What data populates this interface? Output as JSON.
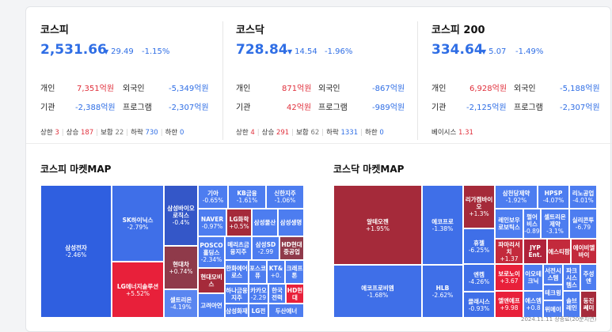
{
  "indices": [
    {
      "name": "코스피",
      "value": "2,531.66",
      "change": "29.49",
      "pct": "-1.15%",
      "rows": [
        {
          "l1": "개인",
          "v1": "7,351억원",
          "c1": "red",
          "l2": "외국인",
          "v2": "-5,349억원",
          "c2": "blue"
        },
        {
          "l1": "기관",
          "v1": "-2,388억원",
          "c1": "blue",
          "l2": "프로그램",
          "v2": "-2,307억원",
          "c2": "blue"
        }
      ],
      "stats": {
        "upper_label": "상한",
        "upper": "3",
        "up_label": "상승",
        "up": "187",
        "flat_label": "보합",
        "flat": "22",
        "down_label": "하락",
        "down": "730",
        "lower_label": "하한",
        "lower": "0"
      }
    },
    {
      "name": "코스닥",
      "value": "728.84",
      "change": "14.54",
      "pct": "-1.96%",
      "rows": [
        {
          "l1": "개인",
          "v1": "871억원",
          "c1": "red",
          "l2": "외국인",
          "v2": "-867억원",
          "c2": "blue"
        },
        {
          "l1": "기관",
          "v1": "42억원",
          "c1": "red",
          "l2": "프로그램",
          "v2": "-989억원",
          "c2": "blue"
        }
      ],
      "stats": {
        "upper_label": "상한",
        "upper": "4",
        "up_label": "상승",
        "up": "291",
        "flat_label": "보합",
        "flat": "62",
        "down_label": "하락",
        "down": "1331",
        "lower_label": "하한",
        "lower": "0"
      }
    },
    {
      "name": "코스피 200",
      "value": "334.64",
      "change": "5.07",
      "pct": "-1.49%",
      "rows": [
        {
          "l1": "개인",
          "v1": "6,928억원",
          "c1": "red",
          "l2": "외국인",
          "v2": "-5,188억원",
          "c2": "blue"
        },
        {
          "l1": "기관",
          "v1": "-2,125억원",
          "c1": "blue",
          "l2": "프로그램",
          "v2": "-2,307억원",
          "c2": "blue"
        }
      ],
      "basis_label": "베이시스",
      "basis": "1.31"
    }
  ],
  "kospi_map": {
    "title": "코스피 마켓MAP",
    "cells": [
      {
        "n": "삼성전자",
        "p": "-2.46%"
      },
      {
        "n": "SK하이닉스",
        "p": "-2.79%"
      },
      {
        "n": "LG에너지솔루션",
        "p": "+5.52%"
      },
      {
        "n": "삼성바이오로직스",
        "p": "-0.4%"
      },
      {
        "n": "현대차",
        "p": "+0.74%"
      },
      {
        "n": "셀트리온",
        "p": "-4.19%"
      },
      {
        "n": "기아",
        "p": "-0.65%"
      },
      {
        "n": "KB금융",
        "p": "-1.61%"
      },
      {
        "n": "신한지주",
        "p": "-1.06%"
      },
      {
        "n": "NAVER",
        "p": "-0.97%"
      },
      {
        "n": "LG화학",
        "p": "+0.5%"
      },
      {
        "n": "삼성물산",
        "p": ""
      },
      {
        "n": "삼성생명",
        "p": ""
      },
      {
        "n": "POSCO홀딩스",
        "p": "-2.34%"
      },
      {
        "n": "메리츠금융지주",
        "p": ""
      },
      {
        "n": "삼성SD",
        "p": "-2.99"
      },
      {
        "n": "HD현대중공업",
        "p": ""
      },
      {
        "n": "현대모비스",
        "p": ""
      },
      {
        "n": "한화에어로스",
        "p": ""
      },
      {
        "n": "포스코퓨",
        "p": ""
      },
      {
        "n": "KT&",
        "p": "+0."
      },
      {
        "n": "크래프톤",
        "p": ""
      },
      {
        "n": "하나금융지주",
        "p": ""
      },
      {
        "n": "카카오",
        "p": "-2.29"
      },
      {
        "n": "한국전력",
        "p": ""
      },
      {
        "n": "HD현대",
        "p": ""
      },
      {
        "n": "고려아연",
        "p": ""
      },
      {
        "n": "삼성화재",
        "p": ""
      },
      {
        "n": "LG전",
        "p": ""
      },
      {
        "n": "두산에너",
        "p": ""
      }
    ]
  },
  "kosdaq_map": {
    "title": "코스닥 마켓MAP",
    "cells": [
      {
        "n": "알테오젠",
        "p": "+1.95%"
      },
      {
        "n": "에코프로비엠",
        "p": "-1.68%"
      },
      {
        "n": "에코프로",
        "p": "-1.38%"
      },
      {
        "n": "HLB",
        "p": "-2.62%"
      },
      {
        "n": "리가켐바이오",
        "p": "+1.3%"
      },
      {
        "n": "휴젤",
        "p": "-6.25%"
      },
      {
        "n": "엔켐",
        "p": "-4.26%"
      },
      {
        "n": "클래시스",
        "p": "-0.93%"
      },
      {
        "n": "삼천당제약",
        "p": "-1.92%"
      },
      {
        "n": "HPSP",
        "p": "-4.07%"
      },
      {
        "n": "리노공업",
        "p": "-4.01%"
      },
      {
        "n": "레인보우로보틱스",
        "p": ""
      },
      {
        "n": "펄어비스",
        "p": "-0.89"
      },
      {
        "n": "셀트리온제약",
        "p": "-3.1%"
      },
      {
        "n": "실리콘투",
        "p": "-6.79"
      },
      {
        "n": "파마리서치",
        "p": "+1.37"
      },
      {
        "n": "JYP Ent.",
        "p": ""
      },
      {
        "n": "에스티팜",
        "p": ""
      },
      {
        "n": "에이비엘바이",
        "p": ""
      },
      {
        "n": "보로노이",
        "p": "+3.67"
      },
      {
        "n": "이오테크닉",
        "p": ""
      },
      {
        "n": "서전시스템",
        "p": ""
      },
      {
        "n": "파크시스템스",
        "p": ""
      },
      {
        "n": "주성엔",
        "p": ""
      },
      {
        "n": "테크윙",
        "p": ""
      },
      {
        "n": "엘앤에프",
        "p": "+9.98"
      },
      {
        "n": "에스엠",
        "p": "+0.8"
      },
      {
        "n": "솔브레인",
        "p": ""
      },
      {
        "n": "동진쎄미",
        "p": ""
      },
      {
        "n": "위메이",
        "p": ""
      },
      {
        "n": "홈센",
        "p": ""
      },
      {
        "n": "동화",
        "p": ""
      }
    ]
  },
  "footer": "2024.11.11 장종료(20분지연)"
}
